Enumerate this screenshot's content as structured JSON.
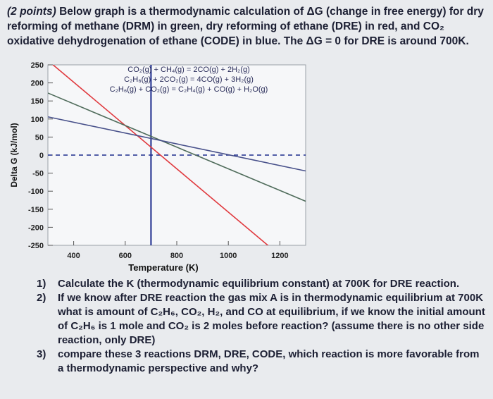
{
  "intro": {
    "points": "(2 points)",
    "text": "Below graph is a thermodynamic calculation of ΔG (change in free energy) for dry reforming of methane (DRM) in green, dry reforming of ethane (DRE) in red, and CO₂ oxidative dehydrogenation of ethane (CODE) in blue. The ΔG = 0 for DRE is around 700K."
  },
  "chart_data": {
    "type": "line",
    "xlabel": "Temperature (K)",
    "ylabel": "Delta G (kJ/mol)",
    "xlim": [
      300,
      1300
    ],
    "ylim": [
      -250,
      250
    ],
    "xticks": [
      400,
      600,
      800,
      1000,
      1200
    ],
    "yticks": [
      250,
      200,
      150,
      100,
      50,
      0,
      -50,
      -100,
      -150,
      -200,
      -250
    ],
    "grid": false,
    "reference_lines": [
      {
        "orientation": "horizontal",
        "y": 0,
        "style": "dashed",
        "color": "#1a2a8c"
      },
      {
        "orientation": "vertical",
        "x": 700,
        "style": "solid",
        "color": "#1a2a8c"
      }
    ],
    "equations": [
      "CO₂(g) + CH₄(g) = 2CO(g) + 2H₂(g)",
      "C₂H₆(g) + 2CO₂(g) = 4CO(g) + 3H₂(g)",
      "C₂H₆(g) + CO₂(g) = C₂H₄(g) + CO(g) + H₂O(g)"
    ],
    "series": [
      {
        "color": "#e0393e",
        "x": [
          300,
          1300
        ],
        "y": [
          262,
          -338
        ]
      },
      {
        "color": "#4e6b5a",
        "x": [
          300,
          1300
        ],
        "y": [
          172,
          -128
        ]
      },
      {
        "color": "#47508a",
        "x": [
          300,
          1300
        ],
        "y": [
          106,
          -44
        ]
      }
    ]
  },
  "questions": [
    {
      "num": "1)",
      "text": "Calculate the K (thermodynamic equilibrium constant) at 700K for DRE reaction."
    },
    {
      "num": "2)",
      "text": "If we know after DRE reaction the gas mix A is in thermodynamic equilibrium at 700K what is amount of C₂H₆, CO₂, H₂, and CO at equilibrium, if we know the initial amount of C₂H₆ is 1 mole and CO₂ is 2 moles before reaction? (assume there is no other side reaction, only DRE)"
    },
    {
      "num": "3)",
      "text": "compare these 3 reactions DRM, DRE, CODE, which reaction is more favorable from a thermodynamic perspective and why?"
    }
  ]
}
